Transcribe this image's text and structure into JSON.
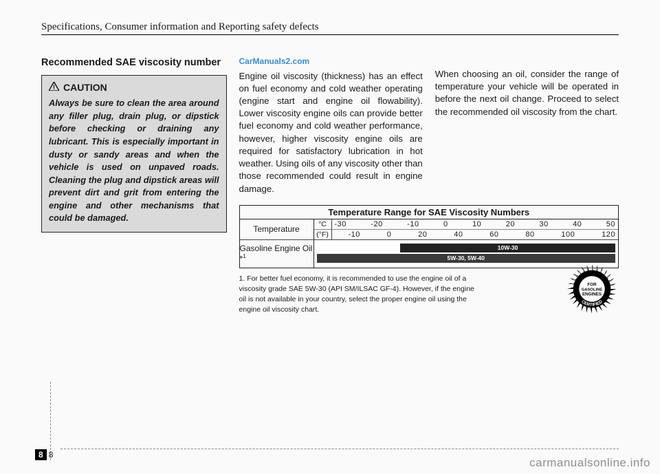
{
  "header": {
    "section_title": "Specifications, Consumer information and Reporting safety defects"
  },
  "left_col": {
    "heading": "Recommended SAE viscosity number",
    "caution": {
      "label": "CAUTION",
      "text": "Always be sure to clean the area around any filler plug, drain plug, or dipstick before checking or draining any lubricant. This is especially important in dusty or sandy areas and when the vehicle is used on unpaved roads. Cleaning the plug and dipstick areas will prevent dirt and grit from entering the engine and other mechanisms that could be damaged."
    }
  },
  "mid_col": {
    "watermark": "CarManuals2.com",
    "text": "Engine oil viscosity (thickness) has an effect on fuel economy and cold weather operating (engine start and engine oil flowability). Lower viscosity engine oils can provide better fuel economy and cold weather performance, however, higher viscosity engine oils are required for satisfactory lubrication in hot weather. Using oils of any viscosity other than those recommended could result in engine damage."
  },
  "right_col": {
    "text": "When choosing an oil, consider the range of temperature your vehicle will be operated in before the next oil change. Proceed to select the recommended oil viscosity from the chart."
  },
  "viscosity_table": {
    "title": "Temperature Range for SAE Viscosity Numbers",
    "temp_label": "Temperature",
    "units": {
      "c": "°C",
      "f": "(°F)"
    },
    "c_scale": [
      "-30",
      "-20",
      "-10",
      "0",
      "10",
      "20",
      "30",
      "40",
      "50"
    ],
    "f_scale": [
      "-10",
      "0",
      "20",
      "40",
      "60",
      "80",
      "100",
      "120"
    ],
    "oil_label": "Gasoline Engine Oil *",
    "oil_sup": "1",
    "bars": [
      {
        "label": "10W-30",
        "left_pct": 28,
        "right_pct": 0,
        "bg": "#222222"
      },
      {
        "label": "5W-30, 5W-40",
        "left_pct": 0,
        "right_pct": 0,
        "bg": "#3a3a3a"
      }
    ]
  },
  "footnote": "1. For better fuel economy, it is recommended to use the engine oil of a viscosity grade SAE 5W-30 (API SM/ILSAC GF-4). However, if the engine oil is not available in your country, select the proper engine oil using the engine oil viscosity chart.",
  "seal": {
    "outer_top": "AMERICAN PETROLEUM INSTITUTE",
    "outer_bottom": "CERTIFIED",
    "inner": "FOR GASOLINE ENGINES"
  },
  "page_number": {
    "section": "8",
    "page": "8"
  },
  "watermark_bottom": "carmanualsonline.info",
  "colors": {
    "page_bg": "#fafafa",
    "text": "#1a1a1a",
    "caution_bg": "#dadada",
    "link_blue": "#3b8bd6",
    "bar_dark": "#222222",
    "bar_mid": "#3a3a3a",
    "wm_gray": "#8f8f8f"
  }
}
